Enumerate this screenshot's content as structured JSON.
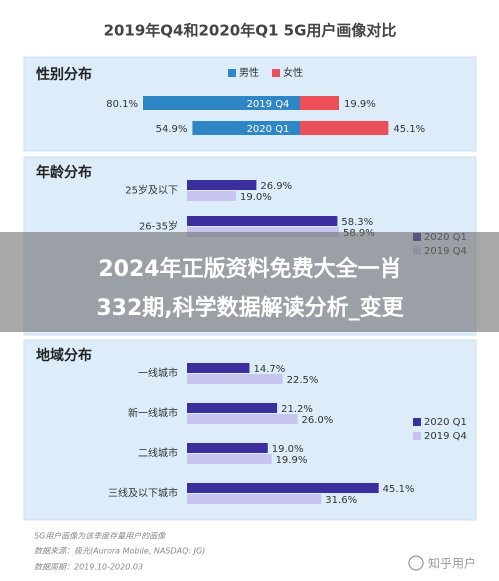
{
  "title": "2019年Q4和2020年Q1 5G用户画像对比",
  "chart_data": [
    {
      "type": "diverging_bar",
      "title": "性别分布",
      "categories": [
        "2019 Q4",
        "2020 Q1"
      ],
      "series": [
        {
          "name": "男性",
          "color": "#2f86c6",
          "values": [
            80.1,
            54.9
          ],
          "value_labels": [
            "80.1%",
            "54.9%"
          ]
        },
        {
          "name": "女性",
          "color": "#ea4f5a",
          "values": [
            19.9,
            45.1
          ],
          "value_labels": [
            "19.9%",
            "45.1%"
          ]
        }
      ],
      "legend": "top"
    },
    {
      "type": "grouped_bar",
      "title": "年龄分布",
      "categories": [
        "25岁及以下",
        "26-35岁"
      ],
      "series": [
        {
          "name": "2020 Q1",
          "color": "#3b2f9e",
          "values": [
            26.9,
            58.3
          ],
          "value_labels": [
            "26.9%",
            "58.3%"
          ]
        },
        {
          "name": "2019 Q4",
          "color": "#c7c4ef",
          "values": [
            19.0,
            58.9
          ],
          "value_labels": [
            "19.0%",
            "58.9%"
          ]
        }
      ],
      "legend": "right"
    },
    {
      "type": "grouped_bar",
      "title": "地域分布",
      "categories": [
        "一线城市",
        "新一线城市",
        "二线城市",
        "三线及以下城市"
      ],
      "series": [
        {
          "name": "2020 Q1",
          "color": "#3b2f9e",
          "values": [
            14.7,
            21.2,
            19.0,
            45.1
          ],
          "value_labels": [
            "14.7%",
            "21.2%",
            "19.0%",
            "45.1%"
          ]
        },
        {
          "name": "2019 Q4",
          "color": "#c7c4ef",
          "values": [
            22.5,
            26.0,
            19.9,
            31.6
          ],
          "value_labels": [
            "22.5%",
            "26.0%",
            "19.9%",
            "31.6%"
          ]
        }
      ],
      "legend": "right"
    }
  ],
  "banner": [
    "2024年正版资料免费大全一肖",
    "332期,科学数据解读分析_变更"
  ],
  "footer": [
    "5G用户画像为该季度存量用户的画像",
    "数据来源：极光(Aurora Mobile, NASDAQ: JG)",
    "数据周期：2019.10-2020.03"
  ],
  "watermark": "知乎用户"
}
